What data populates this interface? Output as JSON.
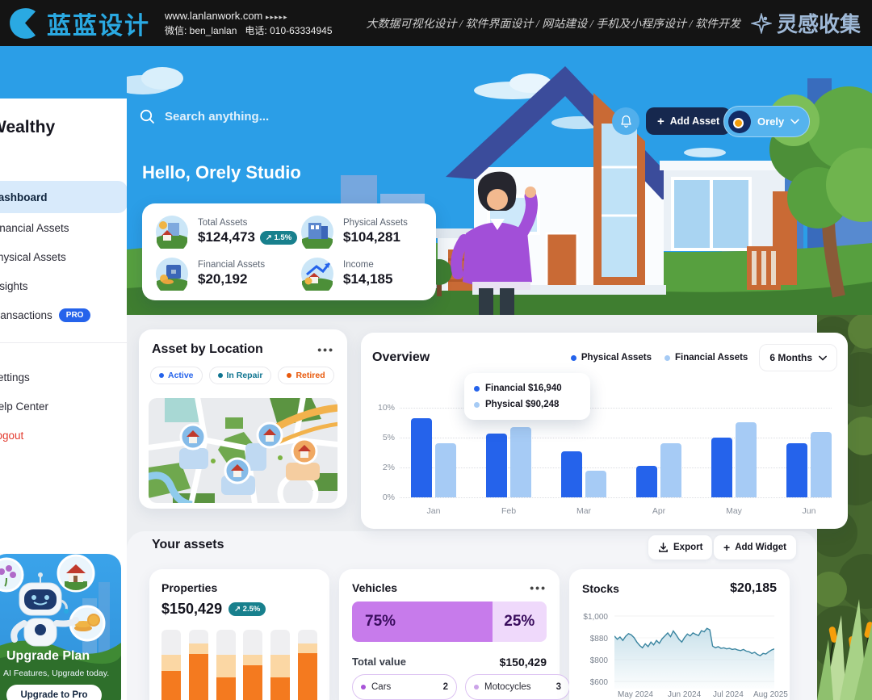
{
  "banner": {
    "brand": "蓝蓝设计",
    "url": "www.lanlanwork.com",
    "url_arrows": "▸▸▸▸▸",
    "wechat": "微信: ben_lanlan",
    "phone": "电话: 010-63334945",
    "services": "大数据可视化设计 / 软件界面设计 / 网站建设 / 手机及小程序设计 / 软件开发",
    "collect": "灵感收集"
  },
  "sidebar": {
    "brand": "Wealthy",
    "items": [
      {
        "label": "Dashboard",
        "active": true
      },
      {
        "label": "Financial Assets"
      },
      {
        "label": "Physical Assets"
      },
      {
        "label": "Insights"
      },
      {
        "label": "Transactions",
        "badge": "PRO"
      }
    ],
    "footer": [
      {
        "label": "Settings"
      },
      {
        "label": "Help Center"
      },
      {
        "label": "Logout"
      }
    ],
    "upgrade": {
      "title": "Upgrade Plan",
      "subtitle": "AI Features, Upgrade today.",
      "button": "Upgrade to Pro"
    }
  },
  "header": {
    "search_placeholder": "Search anything...",
    "add_asset_label": "Add Asset",
    "user_name": "Orely"
  },
  "hero": {
    "greeting": "Hello, Orely Studio"
  },
  "stats": [
    {
      "label": "Total Assets",
      "value": "$124,473",
      "badge": "↗ 1.5%"
    },
    {
      "label": "Physical Assets",
      "value": "$104,281"
    },
    {
      "label": "Financial Assets",
      "value": "$20,192"
    },
    {
      "label": "Income",
      "value": "$14,185"
    }
  ],
  "asset_location": {
    "title": "Asset by Location",
    "menu": "•••",
    "filters": [
      {
        "label": "Active",
        "color": "#2563EB"
      },
      {
        "label": "In Repair",
        "color": "#0E7490"
      },
      {
        "label": "Retired",
        "color": "#E8590C"
      }
    ]
  },
  "overview": {
    "title": "Overview",
    "legend": [
      {
        "label": "Physical Assets",
        "color": "#2563EB"
      },
      {
        "label": "Financial Assets",
        "color": "#A6CBF5"
      }
    ],
    "period": "6 Months",
    "tooltip": [
      {
        "label": "Financial $16,940",
        "color": "#2563EB"
      },
      {
        "label": "Physical $90,248",
        "color": "#A6CBF5"
      }
    ]
  },
  "your_assets": {
    "title": "Your assets",
    "export_label": "Export",
    "add_widget_label": "Add Widget"
  },
  "properties": {
    "title": "Properties",
    "value": "$150,429",
    "badge": "↗ 2.5%"
  },
  "vehicles": {
    "title": "Vehicles",
    "menu": "•••",
    "total_label": "Total value",
    "total_value": "$150,429",
    "pills": [
      {
        "label": "Cars",
        "count": "2",
        "dot": "#A855D8"
      },
      {
        "label": "Motocycles",
        "count": "3",
        "dot": "#CBA3E8"
      }
    ]
  },
  "stocks": {
    "title": "Stocks",
    "value": "$20,185"
  },
  "chart_data": [
    {
      "id": "overview",
      "type": "bar",
      "title": "Overview",
      "categories": [
        "Jan",
        "Feb",
        "Mar",
        "Apr",
        "May",
        "Jun"
      ],
      "ytick_labels": [
        "10%",
        "5%",
        "2%",
        "0%"
      ],
      "ytick_values": [
        10,
        5,
        2,
        0
      ],
      "series": [
        {
          "name": "Physical Assets",
          "color": "#2563EB",
          "values": [
            8.3,
            5.7,
            3.6,
            2.2,
            5.0,
            4.4
          ]
        },
        {
          "name": "Financial Assets",
          "color": "#A6CBF5",
          "values": [
            4.4,
            6.7,
            1.8,
            4.4,
            7.6,
            5.9
          ]
        }
      ],
      "legend_position": "top-right",
      "grid": "dotted-horizontal"
    },
    {
      "id": "properties",
      "type": "stacked-bar",
      "bars": 6,
      "track_color": "#EFEFF1",
      "series": [
        {
          "name": "upper",
          "color": "#FBD7A4",
          "top_pct": [
            28,
            15,
            28,
            28,
            28,
            15
          ]
        },
        {
          "name": "lower",
          "color": "#F47A1F",
          "top_pct": [
            46,
            27,
            54,
            40,
            54,
            26
          ]
        }
      ]
    },
    {
      "id": "vehicles",
      "type": "split-bar",
      "values": [
        75,
        25
      ],
      "labels": [
        "75%",
        "25%"
      ],
      "colors": [
        "#C77BEB",
        "#EFD9FB"
      ]
    },
    {
      "id": "stocks",
      "type": "area-line",
      "ytick_labels": [
        "$1,000",
        "$880",
        "$800",
        "$600"
      ],
      "ytick_values": [
        1000,
        880,
        800,
        600
      ],
      "categories": [
        "May 2024",
        "Jun 2024",
        "Jul 2024",
        "Aug 2025"
      ],
      "values": [
        885,
        872,
        880,
        868,
        884,
        898,
        892,
        878,
        862,
        850,
        842,
        856,
        846,
        862,
        852,
        868,
        858,
        874,
        886,
        902,
        882,
        912,
        892,
        872,
        862,
        878,
        896,
        886,
        902,
        894,
        888,
        914,
        908,
        926,
        918,
        848,
        842,
        846,
        840,
        842,
        838,
        840,
        836,
        838,
        834,
        832,
        836,
        830,
        828,
        822,
        826,
        818,
        814,
        822,
        820,
        828,
        834,
        838
      ],
      "line_color": "#3A85A0",
      "fill_color": "#C7E0EA"
    }
  ]
}
